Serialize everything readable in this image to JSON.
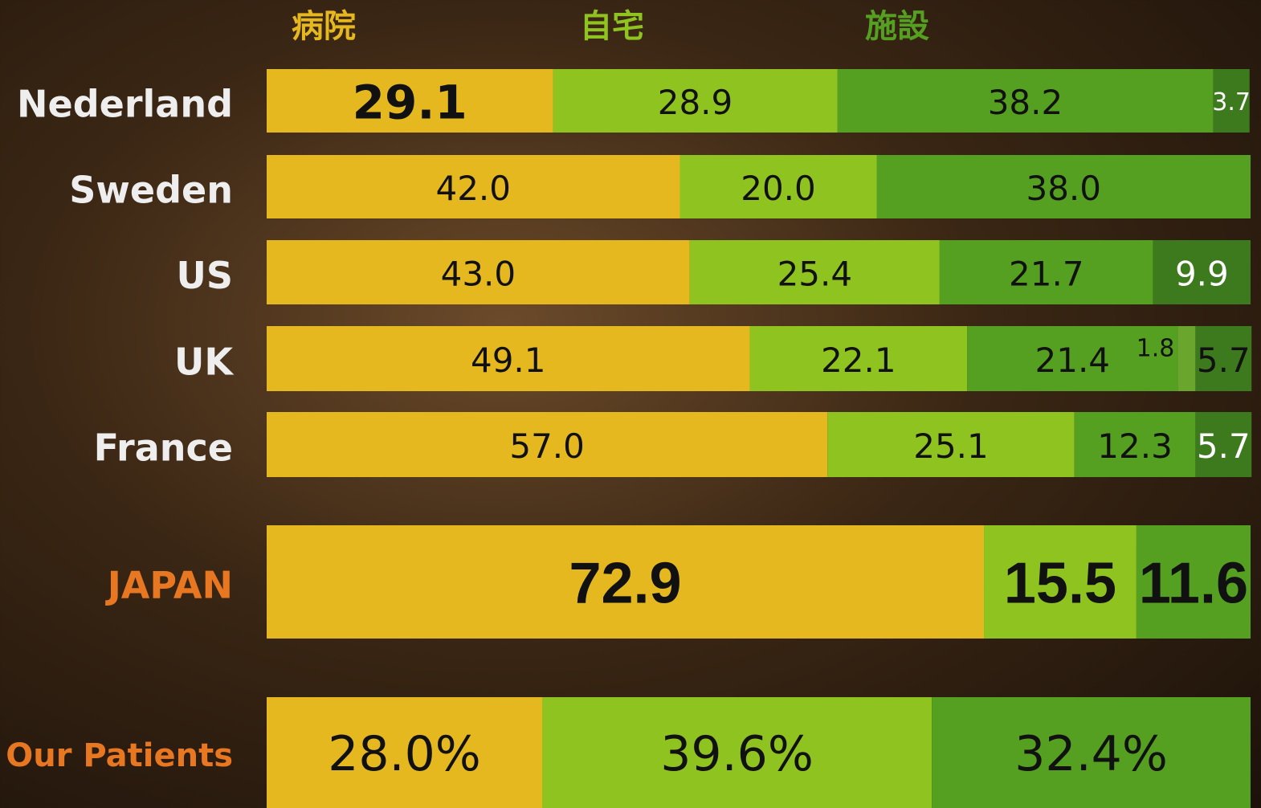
{
  "chart_data": {
    "type": "stacked-bar-horizontal",
    "categories": [
      "Nederland",
      "Sweden",
      "US",
      "UK",
      "France",
      "JAPAN",
      "Our Patients"
    ],
    "xlim": [
      0,
      100
    ],
    "series": [
      {
        "name": "病院",
        "color": "#e6b820",
        "values": [
          29.1,
          42.0,
          43.0,
          49.1,
          57.0,
          72.9,
          28.0
        ],
        "value_labels": [
          "29.1",
          "42.0",
          "43.0",
          "49.1",
          "57.0",
          "72.9",
          "28.0%"
        ]
      },
      {
        "name": "自宅",
        "color": "#8fc31f",
        "values": [
          28.9,
          20.0,
          25.4,
          22.1,
          25.1,
          15.5,
          39.6
        ],
        "value_labels": [
          "28.9",
          "20.0",
          "25.4",
          "22.1",
          "25.1",
          "15.5",
          "39.6%"
        ]
      },
      {
        "name": "施設",
        "color": "#55a021",
        "values": [
          38.2,
          38.0,
          21.7,
          21.4,
          12.3,
          11.6,
          32.4
        ],
        "value_labels": [
          "38.2",
          "38.0",
          "21.7",
          "21.4",
          "12.3",
          "11.6",
          "32.4%"
        ]
      },
      {
        "color": "#6aa52e",
        "values": [
          null,
          null,
          null,
          1.8,
          null,
          null,
          null
        ]
      },
      {
        "color": "#3d7a1e",
        "values": [
          3.7,
          null,
          9.9,
          5.7,
          5.7,
          null,
          null
        ]
      }
    ]
  }
}
